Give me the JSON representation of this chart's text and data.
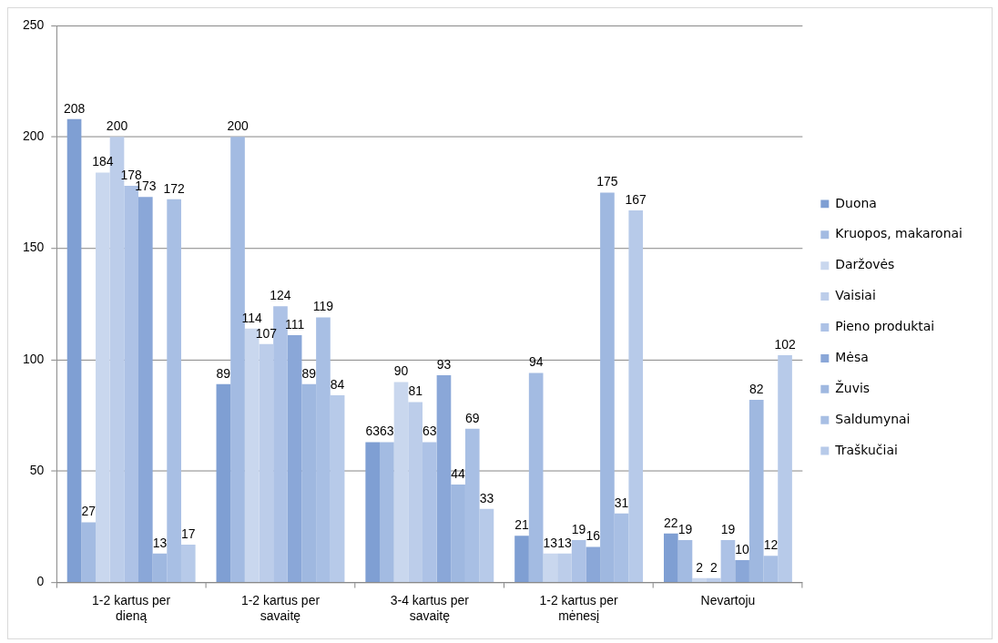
{
  "chart_data": {
    "type": "bar",
    "categories": [
      "1-2 kartus per dieną",
      "1-2 kartus per savaitę",
      "3-4 kartus per savaitę",
      "1-2 kartus per mėnesį",
      "Nevartoju"
    ],
    "series": [
      {
        "name": "Duona",
        "color": "#7f9fd3",
        "values": [
          208,
          89,
          63,
          21,
          22
        ]
      },
      {
        "name": "Kruopos, makaronai",
        "color": "#a3bbe2",
        "values": [
          27,
          200,
          63,
          94,
          19
        ]
      },
      {
        "name": "Daržovės",
        "color": "#c9d7ee",
        "values": [
          184,
          114,
          90,
          13,
          2
        ]
      },
      {
        "name": "Vaisiai",
        "color": "#bccdea",
        "values": [
          200,
          107,
          81,
          13,
          2
        ]
      },
      {
        "name": "Pieno produktai",
        "color": "#adc2e6",
        "values": [
          178,
          124,
          63,
          19,
          19
        ]
      },
      {
        "name": "Mėsa",
        "color": "#8aa7d8",
        "values": [
          173,
          111,
          93,
          16,
          10
        ]
      },
      {
        "name": "Žuvis",
        "color": "#9fb8e0",
        "values": [
          13,
          89,
          44,
          175,
          82
        ]
      },
      {
        "name": "Saldumynai",
        "color": "#a8bfe4",
        "values": [
          172,
          119,
          69,
          31,
          12
        ]
      },
      {
        "name": "Traškučiai",
        "color": "#b7cae9",
        "values": [
          17,
          84,
          33,
          167,
          102
        ]
      }
    ],
    "ylim": [
      0,
      250
    ],
    "yticks": [
      0,
      50,
      100,
      150,
      200,
      250
    ],
    "grid": "y",
    "legend": "right",
    "data_labels": true
  }
}
